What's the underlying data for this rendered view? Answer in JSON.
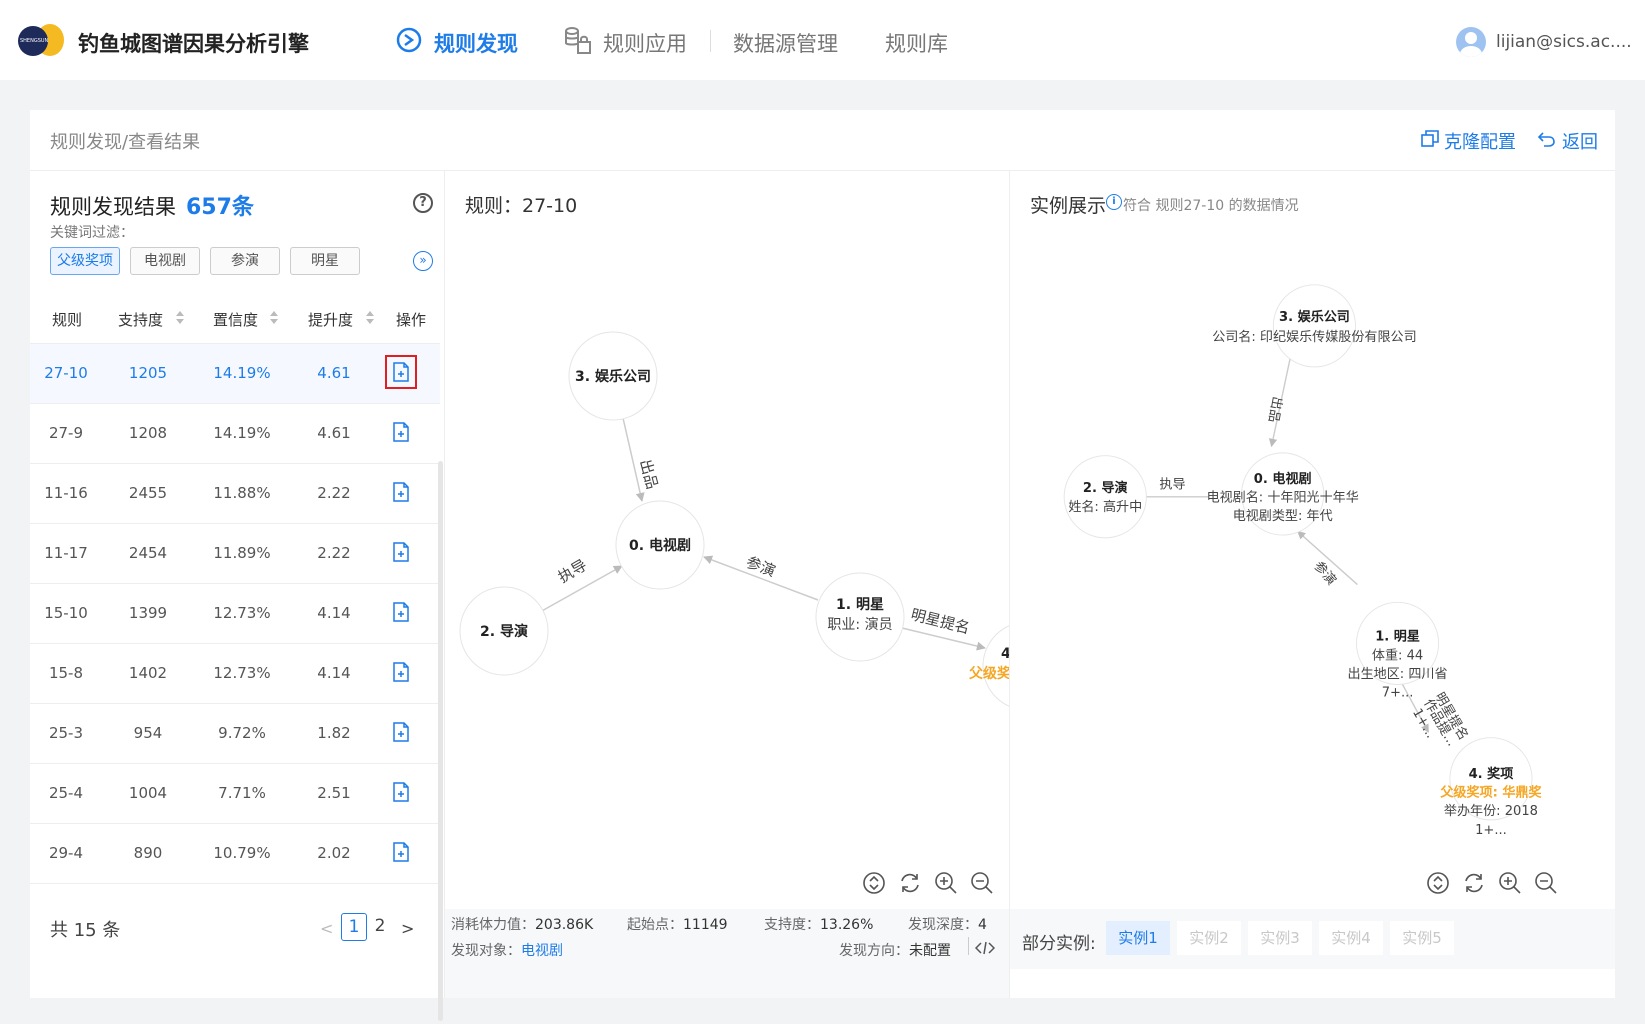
{
  "app": {
    "title": "钓鱼城图谱因果分析引擎"
  },
  "nav": [
    {
      "label": "规则发现"
    },
    {
      "label": "规则应用"
    },
    {
      "label": "数据源管理"
    },
    {
      "label": "规则库"
    }
  ],
  "user": {
    "name": "lijian@sics.ac...."
  },
  "header": {
    "breadcrumb": "规则发现/查看结果",
    "clone": "克隆配置",
    "back": "返回"
  },
  "results": {
    "title": "规则发现结果",
    "count": "657条",
    "filter_label": "关键词过滤：",
    "tags": [
      "父级奖项",
      "电视剧",
      "参演",
      "明星"
    ],
    "columns": [
      "规则",
      "支持度",
      "置信度",
      "提升度",
      "操作"
    ],
    "rows": [
      {
        "rule": "27-10",
        "support": "1205",
        "confidence": "14.19%",
        "lift": "4.61"
      },
      {
        "rule": "27-9",
        "support": "1208",
        "confidence": "14.19%",
        "lift": "4.61"
      },
      {
        "rule": "11-16",
        "support": "2455",
        "confidence": "11.88%",
        "lift": "2.22"
      },
      {
        "rule": "11-17",
        "support": "2454",
        "confidence": "11.89%",
        "lift": "2.22"
      },
      {
        "rule": "15-10",
        "support": "1399",
        "confidence": "12.73%",
        "lift": "4.14"
      },
      {
        "rule": "15-8",
        "support": "1402",
        "confidence": "12.73%",
        "lift": "4.14"
      },
      {
        "rule": "25-3",
        "support": "954",
        "confidence": "9.72%",
        "lift": "1.82"
      },
      {
        "rule": "25-4",
        "support": "1004",
        "confidence": "7.71%",
        "lift": "2.51"
      },
      {
        "rule": "29-4",
        "support": "890",
        "confidence": "10.79%",
        "lift": "2.02"
      }
    ],
    "total": "共 15 条",
    "pages": [
      "1",
      "2"
    ]
  },
  "rule_graph": {
    "title": "规则：27-10",
    "nodes": {
      "n0": "0. 电视剧",
      "n1": "1. 明星",
      "n1_attr": "职业: 演员",
      "n2": "2. 导演",
      "n3": "3. 娱乐公司",
      "n4": "4.",
      "n4_attr": "父级奖"
    },
    "edges": {
      "e30": "出品",
      "e20": "执导",
      "e10": "参演",
      "e14": "明星提名"
    }
  },
  "stats": {
    "cost_label": "消耗体力值：",
    "cost": "203.86K",
    "start_label": "起始点：",
    "start": "11149",
    "support_label": "支持度：",
    "support": "13.26%",
    "depth_label": "发现深度：",
    "depth": "4",
    "object_label": "发现对象：",
    "object": "电视剧",
    "direction_label": "发现方向：",
    "direction": "未配置"
  },
  "instance": {
    "title": "实例展示",
    "note": "符合 规则27-10 的数据情况",
    "nodes": {
      "n3": "3. 娱乐公司",
      "n3_attr": "公司名: 印纪娱乐传媒股份有限公司",
      "n2": "2. 导演",
      "n2_attr": "姓名: 高升中",
      "n0": "0. 电视剧",
      "n0_attr1": "电视剧名: 十年阳光十年华",
      "n0_attr2": "电视剧类型: 年代",
      "n1": "1. 明星",
      "n1_attr1": "体重: 44",
      "n1_attr2": "出生地区: 四川省",
      "n1_attr3": "7+...",
      "n4": "4. 奖项",
      "n4_attr1": "父级奖项: 华鼎奖",
      "n4_attr2": "举办年份: 2018",
      "n4_attr3": "1+..."
    },
    "edges": {
      "e30": "出品",
      "e20": "执导",
      "e10": "参演",
      "e14a": "明星提名",
      "e14b": "作品提...",
      "e14c": "1+..."
    },
    "examples_label": "部分实例:",
    "examples": [
      "实例1",
      "实例2",
      "实例3",
      "实例4",
      "实例5"
    ]
  },
  "colors": {
    "accent": "#1e7ce8",
    "highlight": "#f5a623",
    "selected_outline": "#e02020"
  }
}
